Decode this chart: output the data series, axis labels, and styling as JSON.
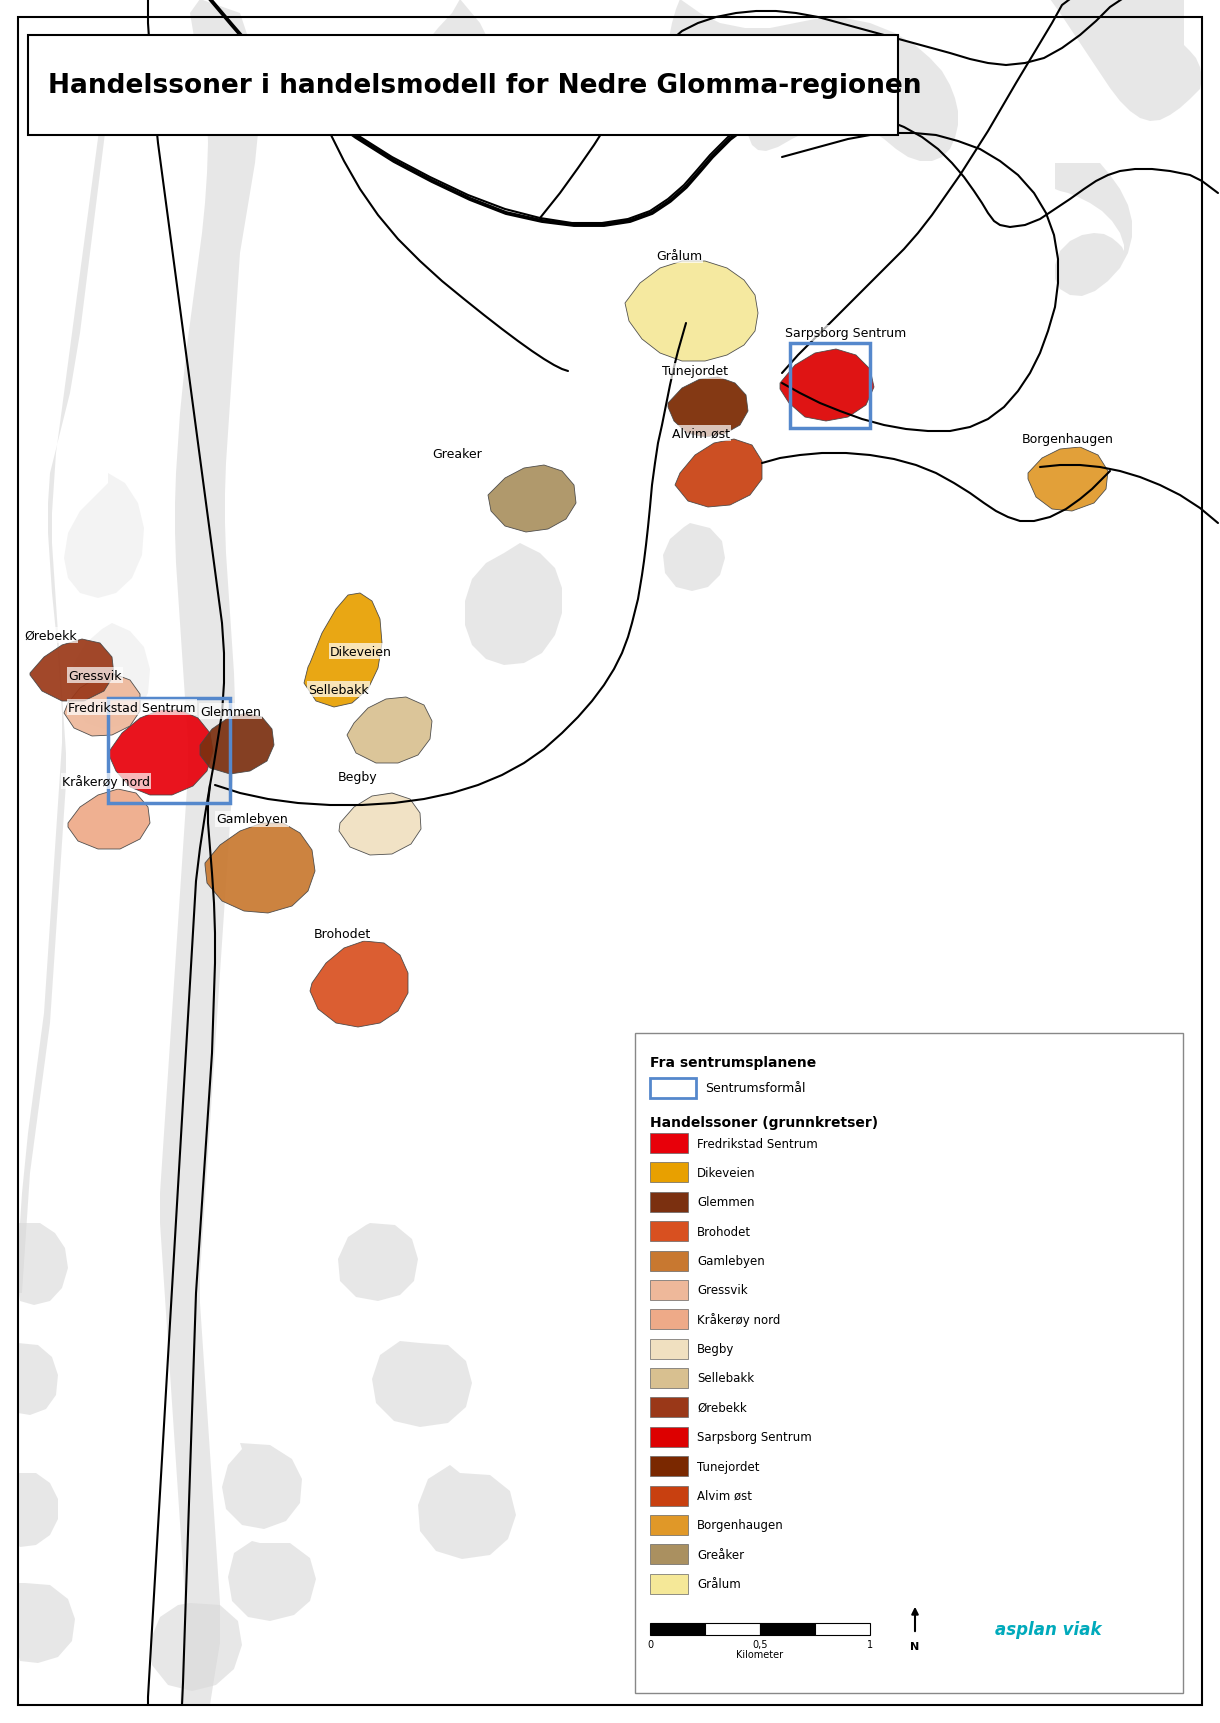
{
  "title": "Handelssoner i handelsmodell for Nedre Glomma-regionen",
  "background_color": "#ffffff",
  "legend": {
    "title1": "Fra sentrumsplanene",
    "entry0_label": "Sentrumsformål",
    "entry0_color": "#5588cc",
    "title2": "Handelssoner (grunnkretser)",
    "entries": [
      {
        "label": "Fredrikstad Sentrum",
        "color": "#e8000a"
      },
      {
        "label": "Dikeveien",
        "color": "#e8a000"
      },
      {
        "label": "Glemmen",
        "color": "#7b3010"
      },
      {
        "label": "Brohodet",
        "color": "#d85020"
      },
      {
        "label": "Gamlebyen",
        "color": "#c87830"
      },
      {
        "label": "Gressvik",
        "color": "#eeb89a"
      },
      {
        "label": "Kråkerøy nord",
        "color": "#eeaa88"
      },
      {
        "label": "Begby",
        "color": "#f0e0c0"
      },
      {
        "label": "Sellebakk",
        "color": "#d8c090"
      },
      {
        "label": "Ørebekk",
        "color": "#9a3818"
      },
      {
        "label": "Sarpsborg Sentrum",
        "color": "#dd0000"
      },
      {
        "label": "Tunejordet",
        "color": "#7a2800"
      },
      {
        "label": "Alvim øst",
        "color": "#c84010"
      },
      {
        "label": "Borgenhaugen",
        "color": "#e09828"
      },
      {
        "label": "Greåker",
        "color": "#aa9060"
      },
      {
        "label": "Grålum",
        "color": "#f5e898"
      }
    ]
  }
}
